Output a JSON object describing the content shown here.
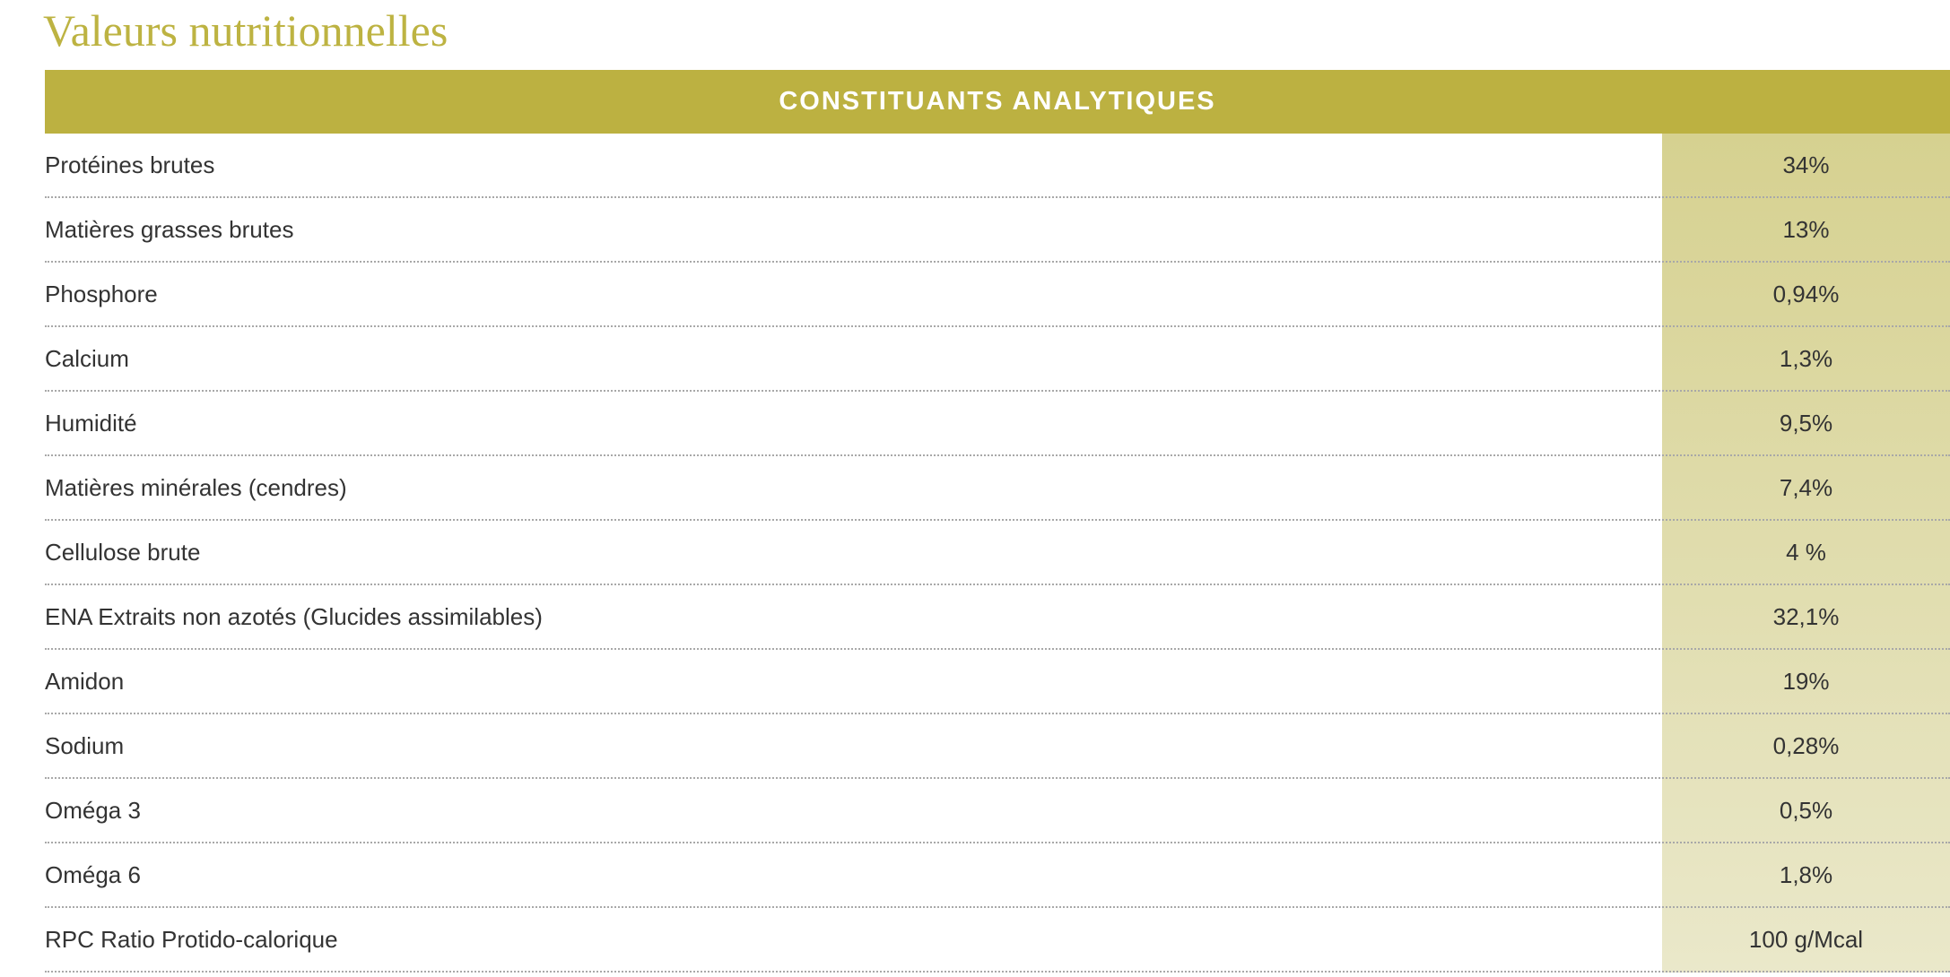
{
  "title": "Valeurs nutritionnelles",
  "table": {
    "header": "CONSTITUANTS ANALYTIQUES",
    "colors": {
      "header_bg": "#bcb141",
      "value_column_bg": "#d6d190",
      "title": "#bdb342"
    },
    "rows": [
      {
        "label": "Protéines brutes",
        "value": "34%"
      },
      {
        "label": "Matières grasses brutes",
        "value": "13%"
      },
      {
        "label": "Phosphore",
        "value": "0,94%"
      },
      {
        "label": "Calcium",
        "value": "1,3%"
      },
      {
        "label": "Humidité",
        "value": "9,5%"
      },
      {
        "label": "Matières minérales (cendres)",
        "value": "7,4%"
      },
      {
        "label": "Cellulose brute",
        "value": "4 %"
      },
      {
        "label": "ENA Extraits non azotés (Glucides assimilables)",
        "value": "32,1%"
      },
      {
        "label": "Amidon",
        "value": "19%"
      },
      {
        "label": "Sodium",
        "value": "0,28%"
      },
      {
        "label": "Oméga 3",
        "value": "0,5%"
      },
      {
        "label": "Oméga 6",
        "value": "1,8%"
      },
      {
        "label": "RPC Ratio Protido-calorique",
        "value": "100 g/Mcal"
      }
    ]
  }
}
